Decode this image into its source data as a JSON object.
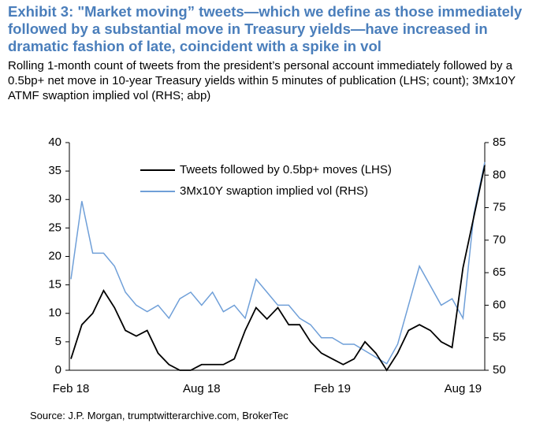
{
  "chart_data": {
    "type": "line",
    "title": "Exhibit 3: \"Market moving” tweets—which we define as those immediately followed by a substantial move in Treasury yields—have increased in dramatic fashion of late, coincident with a spike in vol",
    "subtitle": "Rolling 1-month count of tweets from the president’s personal account immediately followed by a 0.5bp+ net move in 10-year Treasury yields within 5 minutes of publication (LHS; count); 3Mx10Y ATMF swaption implied vol (RHS; abp)",
    "source": "Source: J.P. Morgan, trumptwitterarchive.com, BrokerTec",
    "categories": [
      "Feb 18",
      null,
      null,
      null,
      null,
      null,
      null,
      null,
      null,
      null,
      null,
      null,
      "Aug 18",
      null,
      null,
      null,
      null,
      null,
      null,
      null,
      null,
      null,
      null,
      null,
      "Feb 19",
      null,
      null,
      null,
      null,
      null,
      null,
      null,
      null,
      null,
      null,
      null,
      "Aug 19",
      null,
      null
    ],
    "series": [
      {
        "name": "Tweets followed by 0.5bp+ moves (LHS)",
        "color": "#000000",
        "values": [
          2,
          8,
          10,
          14,
          11,
          7,
          6,
          7,
          3,
          1,
          0,
          0,
          1,
          1,
          1,
          2,
          7,
          11,
          9,
          11,
          8,
          8,
          5,
          3,
          2,
          1,
          2,
          5,
          3,
          0,
          3,
          7,
          8,
          7,
          5,
          4,
          18,
          27,
          36
        ]
      },
      {
        "name": "3Mx10Y swaption implied vol (RHS)",
        "color": "#6f9fd8",
        "axis": "y2",
        "values": [
          64,
          76,
          68,
          68,
          66,
          62,
          60,
          59,
          60,
          58,
          61,
          62,
          60,
          62,
          59,
          60,
          58,
          64,
          62,
          60,
          60,
          58,
          57,
          55,
          55,
          54,
          54,
          53,
          52,
          51,
          54,
          60,
          66,
          63,
          60,
          61,
          58,
          74,
          82
        ]
      }
    ],
    "ylim": [
      0,
      40
    ],
    "yticks": [
      0,
      5,
      10,
      15,
      20,
      25,
      30,
      35,
      40
    ],
    "y2lim": [
      50,
      85
    ],
    "y2ticks": [
      50,
      55,
      60,
      65,
      70,
      75,
      80,
      85
    ],
    "legend": "top"
  }
}
